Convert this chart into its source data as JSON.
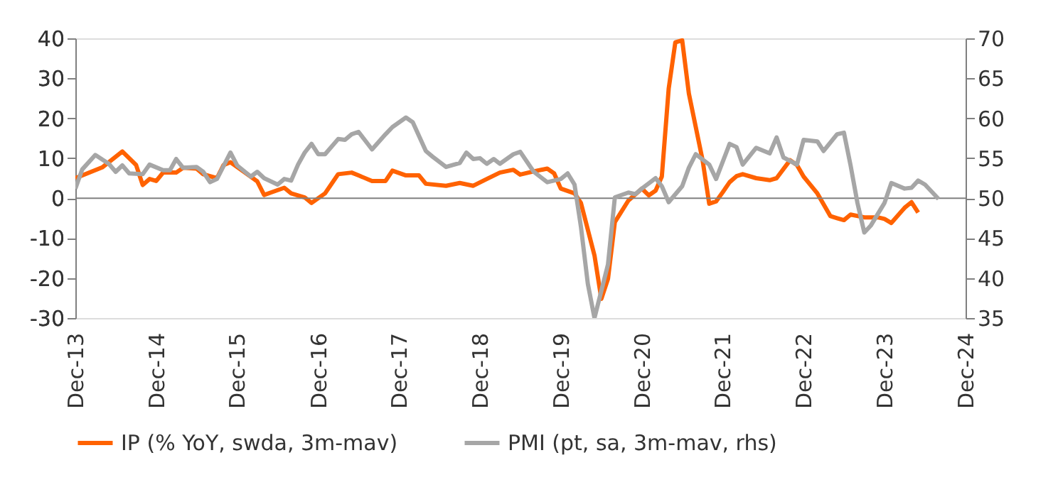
{
  "chart_data": {
    "type": "line",
    "legend": "bottom",
    "grid": false,
    "line_style": "solid",
    "marker": "none",
    "xlim": [
      "2013-12",
      "2024-12"
    ],
    "xticks": [
      {
        "value": "2013-12",
        "label": "Dec-13"
      },
      {
        "value": "2014-12",
        "label": "Dec-14"
      },
      {
        "value": "2015-12",
        "label": "Dec-15"
      },
      {
        "value": "2016-12",
        "label": "Dec-16"
      },
      {
        "value": "2017-12",
        "label": "Dec-17"
      },
      {
        "value": "2018-12",
        "label": "Dec-18"
      },
      {
        "value": "2019-12",
        "label": "Dec-19"
      },
      {
        "value": "2020-12",
        "label": "Dec-20"
      },
      {
        "value": "2021-12",
        "label": "Dec-21"
      },
      {
        "value": "2022-12",
        "label": "Dec-22"
      },
      {
        "value": "2023-12",
        "label": "Dec-23"
      },
      {
        "value": "2024-12",
        "label": "Dec-24"
      }
    ],
    "ylim": [
      -30,
      40
    ],
    "yticks": [
      -30,
      -20,
      -10,
      0,
      10,
      20,
      30,
      40
    ],
    "ref_lines": [
      {
        "axis": "y",
        "value": 0,
        "color": "#808080"
      }
    ],
    "y2lim": [
      35,
      70
    ],
    "y2ticks": [
      35,
      40,
      45,
      50,
      55,
      60,
      65,
      70
    ],
    "series": [
      {
        "name": "IP (% YoY, swda, 3m-mav)",
        "color": "#ff6200",
        "x": [
          "2013-12",
          "2014-04",
          "2014-07",
          "2014-09",
          "2014-10",
          "2014-11",
          "2014-12",
          "2015-01",
          "2015-03",
          "2015-04",
          "2015-06",
          "2015-07",
          "2015-09",
          "2015-10",
          "2015-11",
          "2016-01",
          "2016-03",
          "2016-04",
          "2016-05",
          "2016-07",
          "2016-08",
          "2016-10",
          "2016-11",
          "2017-01",
          "2017-03",
          "2017-05",
          "2017-06",
          "2017-08",
          "2017-10",
          "2017-11",
          "2018-01",
          "2018-03",
          "2018-04",
          "2018-07",
          "2018-09",
          "2018-11",
          "2019-01",
          "2019-03",
          "2019-05",
          "2019-06",
          "2019-08",
          "2019-10",
          "2019-11",
          "2019-12",
          "2020-02",
          "2020-03",
          "2020-05",
          "2020-06",
          "2020-07",
          "2020-08",
          "2020-10",
          "2020-12",
          "2021-01",
          "2021-02",
          "2021-03",
          "2021-04",
          "2021-05",
          "2021-06",
          "2021-07",
          "2021-09",
          "2021-10",
          "2021-11",
          "2021-12",
          "2022-01",
          "2022-02",
          "2022-03",
          "2022-05",
          "2022-07",
          "2022-08",
          "2022-10",
          "2022-11",
          "2022-12",
          "2023-02",
          "2023-04",
          "2023-05",
          "2023-06",
          "2023-07",
          "2023-09",
          "2023-11",
          "2023-12",
          "2024-01",
          "2024-03",
          "2024-04",
          "2024-05"
        ],
        "values": [
          5.0,
          7.7,
          11.7,
          8.3,
          3.3,
          4.8,
          4.3,
          6.4,
          6.4,
          7.6,
          7.4,
          6.0,
          5.0,
          8.3,
          9.0,
          6.6,
          4.2,
          0.8,
          1.4,
          2.6,
          1.2,
          0.2,
          -1.2,
          1.2,
          6.0,
          6.4,
          5.7,
          4.3,
          4.3,
          6.9,
          5.7,
          5.7,
          3.6,
          3.1,
          3.8,
          3.1,
          4.8,
          6.4,
          7.1,
          5.9,
          6.7,
          7.4,
          6.2,
          2.4,
          1.2,
          -1.2,
          -14.3,
          -25.2,
          -20.2,
          -6.0,
          -0.6,
          2.4,
          0.7,
          1.9,
          5.4,
          27.4,
          39.0,
          39.5,
          26.2,
          9.5,
          -1.4,
          -0.8,
          1.5,
          4.0,
          5.5,
          6.0,
          5.0,
          4.5,
          5.0,
          9.5,
          8.3,
          5.4,
          1.2,
          -4.5,
          -5.0,
          -5.5,
          -4.1,
          -4.8,
          -4.8,
          -5.2,
          -6.2,
          -2.4,
          -1.0,
          -3.6
        ]
      },
      {
        "name": "PMI (pt, sa, 3m-mav, rhs)",
        "color": "#a6a6a6",
        "axis": "y2",
        "x": [
          "2013-12",
          "2014-01",
          "2014-03",
          "2014-05",
          "2014-06",
          "2014-07",
          "2014-08",
          "2014-10",
          "2014-11",
          "2015-01",
          "2015-02",
          "2015-03",
          "2015-04",
          "2015-06",
          "2015-07",
          "2015-08",
          "2015-09",
          "2015-11",
          "2015-12",
          "2016-02",
          "2016-03",
          "2016-04",
          "2016-06",
          "2016-07",
          "2016-08",
          "2016-09",
          "2016-10",
          "2016-11",
          "2016-12",
          "2017-01",
          "2017-03",
          "2017-04",
          "2017-05",
          "2017-06",
          "2017-08",
          "2017-10",
          "2017-11",
          "2018-01",
          "2018-02",
          "2018-04",
          "2018-05",
          "2018-07",
          "2018-09",
          "2018-10",
          "2018-11",
          "2018-12",
          "2019-01",
          "2019-02",
          "2019-03",
          "2019-05",
          "2019-06",
          "2019-08",
          "2019-10",
          "2019-12",
          "2020-01",
          "2020-02",
          "2020-03",
          "2020-04",
          "2020-05",
          "2020-07",
          "2020-08",
          "2020-10",
          "2020-11",
          "2020-12",
          "2021-02",
          "2021-03",
          "2021-04",
          "2021-06",
          "2021-07",
          "2021-08",
          "2021-10",
          "2021-11",
          "2022-01",
          "2022-02",
          "2022-03",
          "2022-05",
          "2022-07",
          "2022-08",
          "2022-09",
          "2022-11",
          "2022-12",
          "2023-02",
          "2023-03",
          "2023-05",
          "2023-06",
          "2023-07",
          "2023-08",
          "2023-09",
          "2023-10",
          "2023-12",
          "2024-01",
          "2024-03",
          "2024-04",
          "2024-05",
          "2024-06",
          "2024-08"
        ],
        "values": [
          51.2,
          53.6,
          55.4,
          54.3,
          53.3,
          54.1,
          53.1,
          53.0,
          54.2,
          53.5,
          53.5,
          54.9,
          53.8,
          53.9,
          53.3,
          52.0,
          52.4,
          55.7,
          54.1,
          52.7,
          53.3,
          52.5,
          51.7,
          52.4,
          52.2,
          54.2,
          55.7,
          56.8,
          55.5,
          55.5,
          57.4,
          57.3,
          58.0,
          58.3,
          56.1,
          58.0,
          58.9,
          60.1,
          59.5,
          55.9,
          55.2,
          53.9,
          54.4,
          55.7,
          54.9,
          55.0,
          54.3,
          54.9,
          54.3,
          55.5,
          55.8,
          53.3,
          52.0,
          52.4,
          53.1,
          51.7,
          46.4,
          39.3,
          35.0,
          41.7,
          50.1,
          50.7,
          50.5,
          51.2,
          52.5,
          51.5,
          49.5,
          51.5,
          53.8,
          55.5,
          54.2,
          52.4,
          56.8,
          56.4,
          54.2,
          56.3,
          55.6,
          57.6,
          55.1,
          54.2,
          57.3,
          57.1,
          55.9,
          58.0,
          58.2,
          54.1,
          49.4,
          45.7,
          46.6,
          49.4,
          51.9,
          51.2,
          51.3,
          52.2,
          51.7,
          49.9
        ]
      }
    ]
  }
}
